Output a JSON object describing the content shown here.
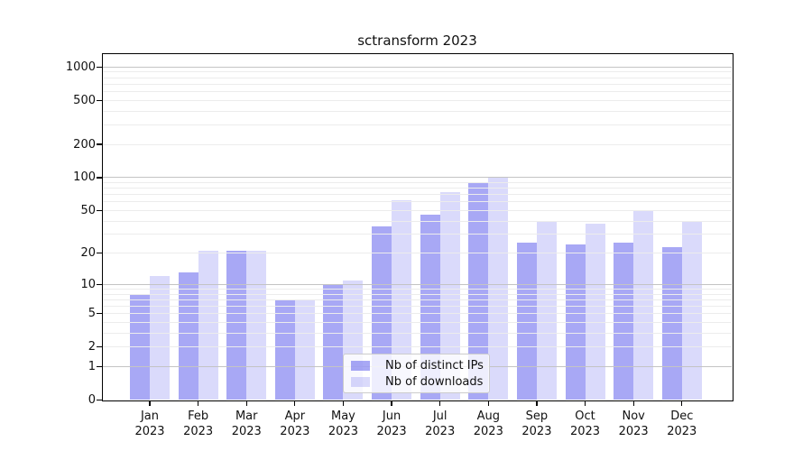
{
  "chart_data": {
    "type": "bar",
    "title": "sctransform 2023",
    "categories": [
      "Jan 2023",
      "Feb 2023",
      "Mar 2023",
      "Apr 2023",
      "May 2023",
      "Jun 2023",
      "Jul 2023",
      "Aug 2023",
      "Sep 2023",
      "Oct 2023",
      "Nov 2023",
      "Dec 2023"
    ],
    "series": [
      {
        "name": "Nb of distinct IPs",
        "color": "rgba(26,26,230,0.38)",
        "values": [
          8,
          13,
          21,
          7,
          10,
          36,
          46,
          91,
          25,
          24,
          25,
          23
        ]
      },
      {
        "name": "Nb of downloads",
        "color": "rgba(26,26,230,0.16)",
        "values": [
          12,
          21,
          21,
          7,
          11,
          62,
          73,
          100,
          39,
          38,
          49,
          40
        ]
      }
    ],
    "yscale": "log1p",
    "yticks": [
      0,
      1,
      2,
      5,
      10,
      20,
      50,
      100,
      200,
      500,
      1000
    ],
    "ylim": [
      0,
      1295
    ],
    "grid": {
      "minor_color": "#ececec",
      "major_color": "#c4c4c4",
      "major_at": [
        1,
        10,
        100,
        1000
      ]
    },
    "legend": {
      "position": "bottom-center"
    },
    "colors": {
      "spine": "#000000",
      "tick_label": "#111111"
    }
  }
}
